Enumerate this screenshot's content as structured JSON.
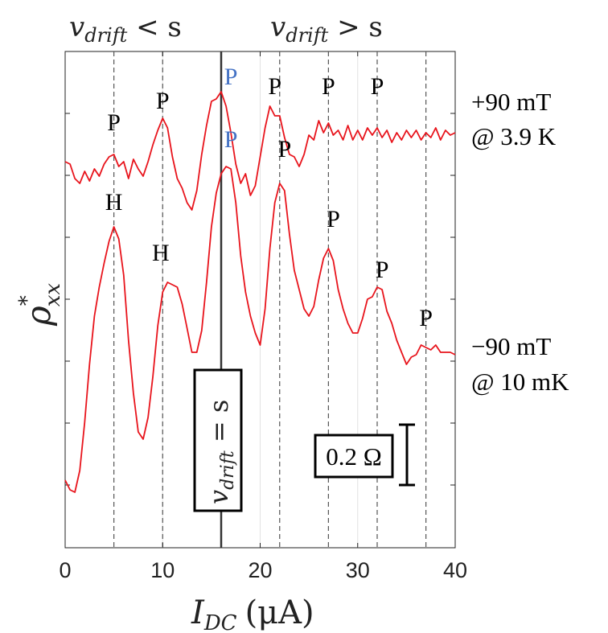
{
  "chart_data": {
    "type": "line",
    "xlabel_main": "I",
    "xlabel_sub": "DC",
    "xlabel_unit": "(μA)",
    "ylabel_main": "ρ",
    "ylabel_sup": "*",
    "ylabel_sub": "xx",
    "xlim": [
      0,
      40
    ],
    "xticks": [
      "0",
      "10",
      "20",
      "30",
      "40"
    ],
    "yticks": [
      "",
      "",
      "",
      "",
      "",
      "",
      "",
      ""
    ],
    "regions": {
      "left": {
        "main": "v",
        "sub": "drift",
        "rel": " < s"
      },
      "right": {
        "main": "v",
        "sub": "drift",
        "rel": " > s"
      }
    },
    "drift_marker": {
      "x": 16,
      "main": "v",
      "sub": "drift",
      "rel": " = s"
    },
    "dashed_x": [
      5,
      10,
      22,
      27,
      32,
      37
    ],
    "scale_bar": {
      "label": "0.2 Ω",
      "ohms": 0.2
    },
    "series": [
      {
        "name": "+90 mT @ 3.9 K",
        "label_line1": "+90 mT",
        "label_line2": "@ 3.9 K",
        "color": "#e8141c",
        "x": [
          0,
          0.5,
          1,
          1.5,
          2,
          2.5,
          3,
          3.5,
          4,
          4.5,
          5,
          5.5,
          6,
          6.5,
          7,
          7.5,
          8,
          8.5,
          9,
          9.5,
          10,
          10.5,
          11,
          11.5,
          12,
          12.5,
          13,
          13.5,
          14,
          14.5,
          15,
          15.5,
          16,
          16.5,
          17,
          17.5,
          18,
          18.5,
          19,
          19.5,
          20,
          20.5,
          21,
          21.5,
          22,
          22.5,
          23,
          23.5,
          24,
          24.5,
          25,
          25.5,
          26,
          26.5,
          27,
          27.5,
          28,
          28.5,
          29,
          29.5,
          30,
          30.5,
          31,
          31.5,
          32,
          32.5,
          33,
          33.5,
          34,
          34.5,
          35,
          35.5,
          36,
          36.5,
          37,
          37.5,
          38,
          38.5,
          39,
          39.5,
          40
        ],
        "y": [
          1.34,
          1.33,
          1.27,
          1.25,
          1.3,
          1.26,
          1.31,
          1.28,
          1.33,
          1.36,
          1.37,
          1.32,
          1.34,
          1.27,
          1.35,
          1.31,
          1.28,
          1.34,
          1.41,
          1.47,
          1.52,
          1.48,
          1.36,
          1.27,
          1.23,
          1.17,
          1.14,
          1.22,
          1.37,
          1.49,
          1.59,
          1.6,
          1.63,
          1.57,
          1.46,
          1.33,
          1.25,
          1.29,
          1.2,
          1.24,
          1.36,
          1.48,
          1.57,
          1.53,
          1.53,
          1.44,
          1.37,
          1.36,
          1.32,
          1.37,
          1.45,
          1.43,
          1.51,
          1.46,
          1.5,
          1.45,
          1.47,
          1.43,
          1.49,
          1.43,
          1.47,
          1.43,
          1.48,
          1.45,
          1.48,
          1.44,
          1.47,
          1.42,
          1.46,
          1.43,
          1.47,
          1.44,
          1.47,
          1.43,
          1.46,
          1.44,
          1.48,
          1.43,
          1.47,
          1.45,
          1.46
        ]
      },
      {
        "name": "−90 mT @ 10 mK",
        "label_line1": "−90 mT",
        "label_line2": "@ 10 mK",
        "color": "#e8141c",
        "x": [
          0,
          0.5,
          1,
          1.5,
          2,
          2.5,
          3,
          3.5,
          4,
          4.5,
          5,
          5.5,
          6,
          6.5,
          7,
          7.5,
          8,
          8.5,
          9,
          9.5,
          10,
          10.5,
          11,
          11.5,
          12,
          12.5,
          13,
          13.5,
          14,
          14.5,
          15,
          15.5,
          16,
          16.5,
          17,
          17.5,
          18,
          18.5,
          19,
          19.5,
          20,
          20.5,
          21,
          21.5,
          22,
          22.5,
          23,
          23.5,
          24,
          24.5,
          25,
          25.5,
          26,
          26.5,
          27,
          27.5,
          28,
          28.5,
          29,
          29.5,
          30,
          30.5,
          31,
          31.5,
          32,
          32.5,
          33,
          33.5,
          34,
          34.5,
          35,
          35.5,
          36,
          36.5,
          37,
          37.5,
          38,
          38.5,
          39,
          39.5,
          40
        ],
        "y": [
          0.02,
          -0.02,
          -0.03,
          0.06,
          0.26,
          0.5,
          0.7,
          0.82,
          0.92,
          1.01,
          1.07,
          1.02,
          0.87,
          0.6,
          0.38,
          0.22,
          0.19,
          0.28,
          0.45,
          0.66,
          0.8,
          0.84,
          0.83,
          0.82,
          0.75,
          0.65,
          0.55,
          0.55,
          0.64,
          0.84,
          1.07,
          1.21,
          1.29,
          1.32,
          1.31,
          1.17,
          0.95,
          0.8,
          0.7,
          0.63,
          0.58,
          0.73,
          0.98,
          1.17,
          1.25,
          1.22,
          1.04,
          0.89,
          0.81,
          0.73,
          0.7,
          0.74,
          0.85,
          0.94,
          0.98,
          0.93,
          0.81,
          0.73,
          0.67,
          0.63,
          0.63,
          0.69,
          0.77,
          0.78,
          0.82,
          0.81,
          0.72,
          0.67,
          0.6,
          0.55,
          0.5,
          0.53,
          0.54,
          0.58,
          0.57,
          0.56,
          0.58,
          0.55,
          0.55,
          0.55,
          0.54
        ]
      }
    ],
    "annotations": [
      {
        "text": "P",
        "x": 5,
        "y": 1.47,
        "color": "#000000"
      },
      {
        "text": "P",
        "x": 10,
        "y": 1.56,
        "color": "#000000"
      },
      {
        "text": "P",
        "x": 17,
        "y": 1.66,
        "color": "#4472c4"
      },
      {
        "text": "P",
        "x": 21.5,
        "y": 1.62,
        "color": "#000000"
      },
      {
        "text": "P",
        "x": 27,
        "y": 1.62,
        "color": "#000000"
      },
      {
        "text": "P",
        "x": 32,
        "y": 1.62,
        "color": "#000000"
      },
      {
        "text": "H",
        "x": 5,
        "y": 1.14,
        "color": "#000000"
      },
      {
        "text": "H",
        "x": 9.8,
        "y": 0.93,
        "color": "#000000"
      },
      {
        "text": "P",
        "x": 17,
        "y": 1.4,
        "color": "#4472c4"
      },
      {
        "text": "P",
        "x": 22.5,
        "y": 1.36,
        "color": "#000000"
      },
      {
        "text": "P",
        "x": 27.5,
        "y": 1.07,
        "color": "#000000"
      },
      {
        "text": "P",
        "x": 32.5,
        "y": 0.86,
        "color": "#000000"
      },
      {
        "text": "P",
        "x": 37,
        "y": 0.66,
        "color": "#000000"
      }
    ]
  }
}
